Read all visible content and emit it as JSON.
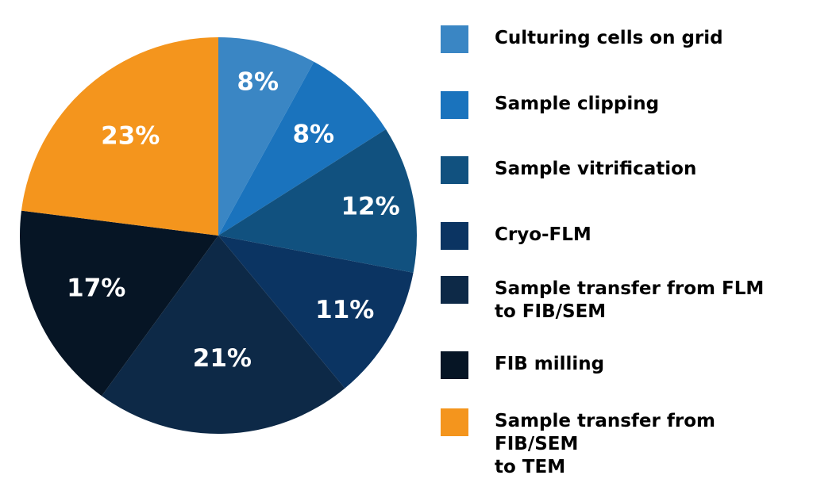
{
  "chart_data": {
    "type": "pie",
    "title": "",
    "start_angle_deg": 0,
    "direction": "clockwise",
    "slices": [
      {
        "name": "Culturing cells on grid",
        "value": 8,
        "label": "8%",
        "color": "#3a86c4"
      },
      {
        "name": "Sample clipping",
        "value": 8,
        "label": "8%",
        "color": "#1a73bd"
      },
      {
        "name": "Sample vitrification",
        "value": 12,
        "label": "12%",
        "color": "#11517f"
      },
      {
        "name": "Cryo-FLM",
        "value": 11,
        "label": "11%",
        "color": "#0b3462"
      },
      {
        "name": "Sample transfer from FLM\nto FIB/SEM",
        "value": 21,
        "label": "21%",
        "color": "#0d2947"
      },
      {
        "name": "FIB milling",
        "value": 17,
        "label": "17%",
        "color": "#061525"
      },
      {
        "name": "Sample transfer from FIB/SEM\nto TEM",
        "value": 23,
        "label": "23%",
        "color": "#f4951d"
      }
    ],
    "legend_placement": "right"
  }
}
